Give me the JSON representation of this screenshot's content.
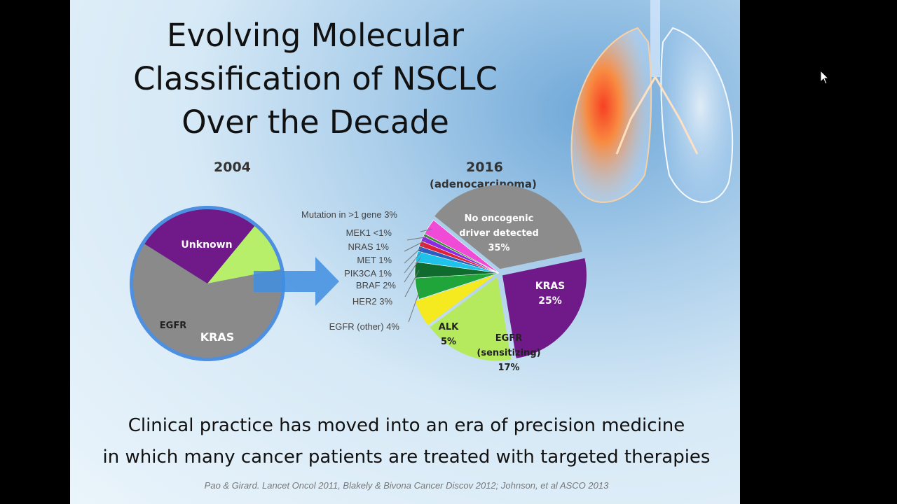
{
  "slide": {
    "title_lines": [
      "Evolving Molecular",
      "Classification of NSCLC",
      "Over the Decade"
    ],
    "caption_lines": [
      "Clinical practice has moved into an era of precision medicine",
      "in which many cancer patients are treated with targeted therapies"
    ],
    "citation": "Pao & Girard. Lancet Oncol 2011, Blakely & Bivona Cancer Discov 2012; Johnson, et al ASCO 2013"
  },
  "chart_data": [
    {
      "type": "pie",
      "title": "2004",
      "subtitle": "",
      "slices": [
        {
          "label": "Unknown",
          "value": 62,
          "color": "#8a8a8a"
        },
        {
          "label": "KRAS",
          "value": 27,
          "color": "#6f1a88"
        },
        {
          "label": "EGFR",
          "value": 11,
          "color": "#b8ef6a"
        }
      ]
    },
    {
      "type": "pie",
      "title": "2016",
      "subtitle": "(adenocarcinoma)",
      "slices": [
        {
          "label": "No oncogenic driver detected",
          "display": [
            "No oncogenic",
            "driver detected",
            "35%"
          ],
          "value": 35,
          "color": "#8c8c8c"
        },
        {
          "label": "KRAS",
          "display": [
            "KRAS",
            "25%"
          ],
          "value": 25,
          "color": "#6f1a88"
        },
        {
          "label": "EGFR (sensitizing)",
          "display": [
            "EGFR",
            "(sensitizing)",
            "17%"
          ],
          "value": 17,
          "color": "#b5ea5f"
        },
        {
          "label": "ALK",
          "display": [
            "ALK",
            "5%"
          ],
          "value": 5,
          "color": "#f5e91f"
        },
        {
          "label": "EGFR (other)",
          "display": "EGFR (other) 4%",
          "value": 4,
          "color": "#1fa53a"
        },
        {
          "label": "HER2",
          "display": "HER2 3%",
          "value": 3,
          "color": "#0f6b2e"
        },
        {
          "label": "BRAF",
          "display": "BRAF 2%",
          "value": 2,
          "color": "#1fc2ea"
        },
        {
          "label": "PIK3CA",
          "display": "PIK3CA 1%",
          "value": 1,
          "color": "#2a5fbf"
        },
        {
          "label": "MET",
          "display": "MET 1%",
          "value": 1,
          "color": "#e0213a"
        },
        {
          "label": "NRAS",
          "display": "NRAS 1%",
          "value": 1,
          "color": "#8a2be2"
        },
        {
          "label": "MEK1",
          "display": "MEK1 <1%",
          "value": 0.5,
          "color": "#3a8c2f"
        },
        {
          "label": "Mutation in >1 gene",
          "display": "Mutation in >1 gene 3%",
          "value": 3,
          "color": "#f04bd6"
        }
      ]
    }
  ]
}
